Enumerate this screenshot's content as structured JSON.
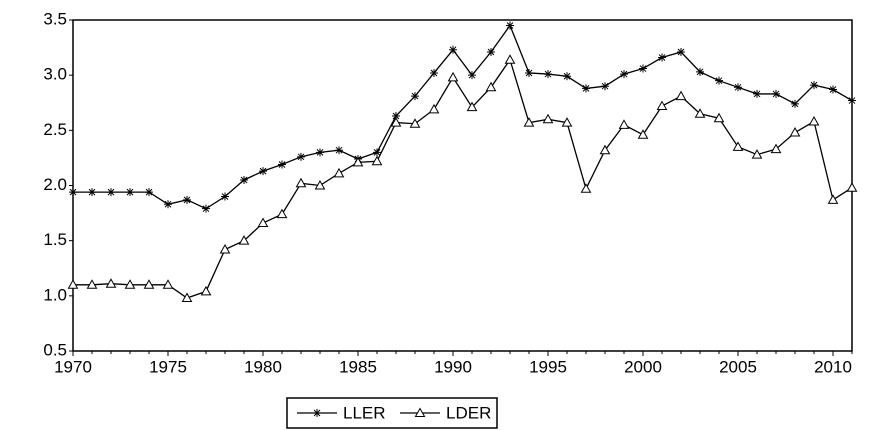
{
  "chart_data": {
    "type": "line",
    "x": [
      1970,
      1971,
      1972,
      1973,
      1974,
      1975,
      1976,
      1977,
      1978,
      1979,
      1980,
      1981,
      1982,
      1983,
      1984,
      1985,
      1986,
      1987,
      1988,
      1989,
      1990,
      1991,
      1992,
      1993,
      1994,
      1995,
      1996,
      1997,
      1998,
      1999,
      2000,
      2001,
      2002,
      2003,
      2004,
      2005,
      2006,
      2007,
      2008,
      2009,
      2010,
      2011
    ],
    "series": [
      {
        "name": "LLER",
        "color": "#000000",
        "marker": "star",
        "values": [
          1.94,
          1.94,
          1.94,
          1.94,
          1.94,
          1.83,
          1.87,
          1.79,
          1.9,
          2.05,
          2.13,
          2.19,
          2.26,
          2.3,
          2.32,
          2.24,
          2.3,
          2.63,
          2.81,
          3.02,
          3.23,
          3.0,
          3.21,
          3.45,
          3.02,
          3.01,
          2.99,
          2.88,
          2.9,
          3.01,
          3.06,
          3.16,
          3.21,
          3.03,
          2.95,
          2.89,
          2.83,
          2.83,
          2.74,
          2.91,
          2.87,
          2.77
        ]
      },
      {
        "name": "LDER",
        "color": "#000000",
        "marker": "triangle",
        "values": [
          1.1,
          1.1,
          1.11,
          1.1,
          1.1,
          1.1,
          0.98,
          1.04,
          1.42,
          1.5,
          1.66,
          1.74,
          2.02,
          2.0,
          2.11,
          2.21,
          2.22,
          2.57,
          2.56,
          2.69,
          2.98,
          2.71,
          2.89,
          3.14,
          2.57,
          2.6,
          2.57,
          1.97,
          2.32,
          2.55,
          2.46,
          2.72,
          2.81,
          2.65,
          2.61,
          2.35,
          2.28,
          2.33,
          2.48,
          2.58,
          1.87,
          1.98
        ]
      }
    ],
    "xlim": [
      1970,
      2011
    ],
    "xticks": [
      1970,
      1975,
      1980,
      1985,
      1990,
      1995,
      2000,
      2005,
      2010
    ],
    "ylim": [
      0.5,
      3.5
    ],
    "yticks": [
      0.5,
      {
        "value": 1,
        "label": "1.0"
      },
      1.5,
      {
        "value": 2,
        "label": "2.0"
      },
      2.5,
      {
        "value": 3,
        "label": "3.0"
      },
      3.5
    ],
    "grid": false,
    "legend": "bottom"
  }
}
